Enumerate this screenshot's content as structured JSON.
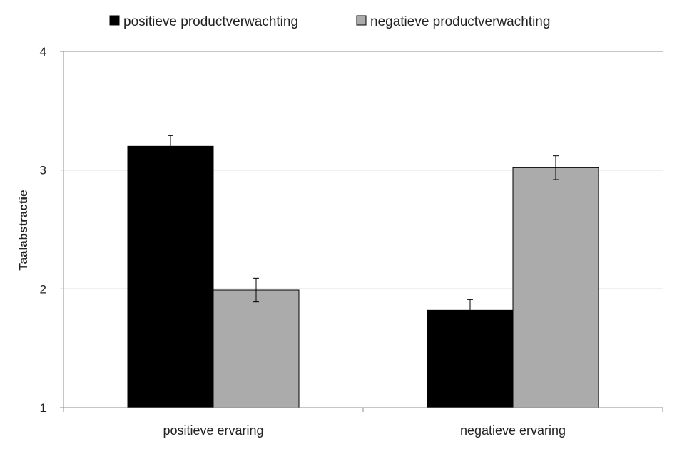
{
  "chart_data": {
    "type": "bar",
    "ylabel": "Taalabstractie",
    "xlabel": "",
    "ylim": [
      1,
      4
    ],
    "yticks": [
      "1",
      "2",
      "3",
      "4"
    ],
    "categories": [
      "positieve ervaring",
      "negatieve ervaring"
    ],
    "series": [
      {
        "name": "positieve productverwachting",
        "color": "#000000",
        "values": [
          3.2,
          1.82
        ],
        "errors": [
          0.09,
          0.09
        ]
      },
      {
        "name": "negatieve productverwachting",
        "color": "#ababab",
        "values": [
          1.99,
          3.02
        ],
        "errors": [
          0.1,
          0.1
        ]
      }
    ],
    "grid": true,
    "legend_position": "top"
  }
}
